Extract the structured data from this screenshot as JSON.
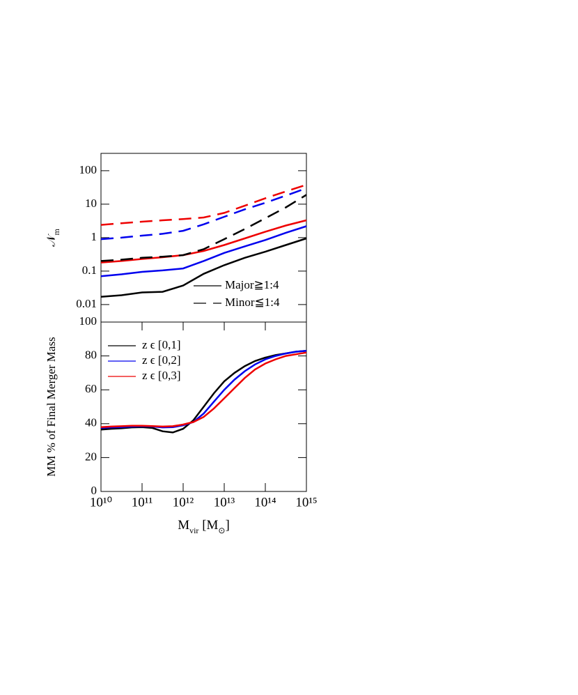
{
  "chart_data": [
    {
      "type": "line",
      "ylabel": [
        "𝒩",
        "m"
      ],
      "ylog": true,
      "xlog": true,
      "xlim": [
        10000000000.0,
        1000000000000000.0
      ],
      "ylim": [
        0.003,
        330
      ],
      "yticks": [
        100,
        10,
        1,
        0.1,
        0.01
      ],
      "x": [
        10000000000.0,
        31620000000.0,
        100000000000.0,
        316200000000.0,
        1000000000000.0,
        3162000000000.0,
        10000000000000.0,
        31620000000000.0,
        100000000000000.0,
        316200000000000.0,
        1000000000000000.0
      ],
      "legend": [
        {
          "name": "Major≧1:4",
          "dash": false
        },
        {
          "name": "Minor≦1:4",
          "dash": true
        }
      ],
      "series": [
        {
          "color": "#000000",
          "dash": false,
          "values": [
            0.017,
            0.019,
            0.023,
            0.024,
            0.037,
            0.083,
            0.15,
            0.25,
            0.38,
            0.6,
            0.95
          ]
        },
        {
          "color": "#0000ee",
          "dash": false,
          "values": [
            0.07,
            0.08,
            0.095,
            0.105,
            0.12,
            0.2,
            0.35,
            0.55,
            0.85,
            1.4,
            2.2
          ]
        },
        {
          "color": "#ee0000",
          "dash": false,
          "values": [
            0.18,
            0.2,
            0.23,
            0.26,
            0.3,
            0.4,
            0.6,
            0.95,
            1.5,
            2.3,
            3.3
          ]
        },
        {
          "color": "#000000",
          "dash": true,
          "values": [
            0.2,
            0.22,
            0.25,
            0.27,
            0.3,
            0.45,
            0.9,
            1.8,
            3.8,
            8,
            19
          ]
        },
        {
          "color": "#0000ee",
          "dash": true,
          "values": [
            0.9,
            1.0,
            1.15,
            1.3,
            1.6,
            2.5,
            4.2,
            7,
            11,
            18,
            30
          ]
        },
        {
          "color": "#ee0000",
          "dash": true,
          "values": [
            2.4,
            2.7,
            3.0,
            3.3,
            3.6,
            4.0,
            5.5,
            9,
            15,
            24,
            38
          ]
        }
      ]
    },
    {
      "type": "line",
      "ylabel": [
        "MM % of Final Merger Mass"
      ],
      "xlabel": [
        "M",
        "vir",
        " [M",
        "⊙",
        "]"
      ],
      "xlog": true,
      "xlim": [
        10000000000.0,
        1000000000000000.0
      ],
      "ylim": [
        0,
        100
      ],
      "yticks": [
        0,
        20,
        40,
        60,
        80,
        100
      ],
      "xticks": [
        {
          "value": 10000000000.0,
          "label": "10¹⁰"
        },
        {
          "value": 100000000000.0,
          "label": "10¹¹"
        },
        {
          "value": 1000000000000.0,
          "label": "10¹²"
        },
        {
          "value": 10000000000000.0,
          "label": "10¹³"
        },
        {
          "value": 100000000000000.0,
          "label": "10¹⁴"
        },
        {
          "value": 1000000000000000.0,
          "label": "10¹⁵"
        }
      ],
      "x": [
        10000000000.0,
        17780000000.0,
        31620000000.0,
        56230000000.0,
        100000000000.0,
        177800000000.0,
        316200000000.0,
        562300000000.0,
        1000000000000.0,
        1778000000000.0,
        3162000000000.0,
        5623000000000.0,
        10000000000000.0,
        17780000000000.0,
        31620000000000.0,
        56230000000000.0,
        100000000000000.0,
        177800000000000.0,
        316200000000000.0,
        562300000000000.0,
        1000000000000000.0
      ],
      "series": [
        {
          "name": "z ϵ [0,1]",
          "color": "#000000",
          "values": [
            36.5,
            37,
            37.3,
            37.8,
            38,
            37.5,
            35.5,
            34.8,
            37,
            42,
            50,
            58,
            65,
            70,
            74,
            77,
            79,
            80.5,
            81.5,
            82.5,
            83
          ]
        },
        {
          "name": "z ϵ [0,2]",
          "color": "#0000ee",
          "values": [
            37.5,
            37.8,
            38,
            38.3,
            38.5,
            38.3,
            37.8,
            38,
            39,
            41,
            46,
            53,
            60,
            66,
            71,
            75,
            78,
            80,
            81.5,
            82.5,
            83
          ]
        },
        {
          "name": "z ϵ [0,3]",
          "color": "#ee0000",
          "values": [
            38,
            38.3,
            38.5,
            38.8,
            38.8,
            38.6,
            38.3,
            38.5,
            39.5,
            41,
            44,
            49,
            55,
            61,
            67,
            72,
            75.5,
            78,
            80,
            81,
            82
          ]
        }
      ]
    }
  ]
}
